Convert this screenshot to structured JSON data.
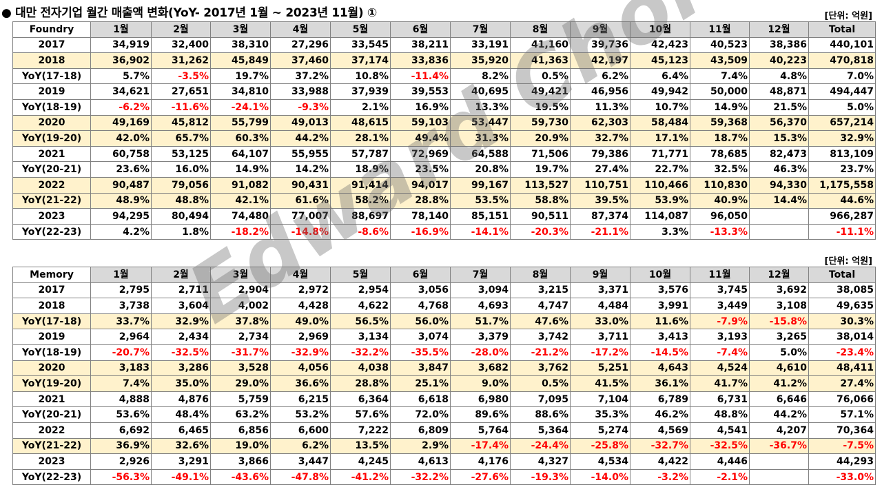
{
  "title": "● 대만 전자기업 월간 매출액 변화(YoY- 2017년 1월 ~  2023년 11월) ①",
  "unit_label": "[단위: 억원]",
  "watermark": "Edward Choi",
  "colors": {
    "header_bg": "#d9d9d9",
    "highlight_bg": "#fff2cc",
    "negative": "#ff0000",
    "border": "#808080"
  },
  "tables": [
    {
      "id": "foundry",
      "columns": [
        "Foundry",
        "1월",
        "2월",
        "3월",
        "4월",
        "5월",
        "6월",
        "7월",
        "8월",
        "9월",
        "10월",
        "11월",
        "12월",
        "Total"
      ],
      "rows": [
        {
          "label": "2017",
          "hl": false,
          "cells": [
            "34,919",
            "32,400",
            "38,310",
            "27,296",
            "33,545",
            "38,211",
            "33,191",
            "41,160",
            "39,736",
            "42,423",
            "40,523",
            "38,386",
            "440,101"
          ]
        },
        {
          "label": "2018",
          "hl": true,
          "cells": [
            "36,902",
            "31,262",
            "45,849",
            "37,460",
            "37,174",
            "33,836",
            "35,920",
            "41,363",
            "42,197",
            "45,123",
            "43,509",
            "40,223",
            "470,818"
          ]
        },
        {
          "label": "YoY(17-18)",
          "hl": false,
          "cells": [
            "5.7%",
            "-3.5%",
            "19.7%",
            "37.2%",
            "10.8%",
            "-11.4%",
            "8.2%",
            "0.5%",
            "6.2%",
            "6.4%",
            "7.4%",
            "4.8%",
            "7.0%"
          ]
        },
        {
          "label": "2019",
          "hl": false,
          "cells": [
            "34,621",
            "27,651",
            "34,810",
            "33,988",
            "37,939",
            "39,553",
            "40,695",
            "49,421",
            "46,956",
            "49,942",
            "50,000",
            "48,871",
            "494,447"
          ]
        },
        {
          "label": "YoY(18-19)",
          "hl": false,
          "cells": [
            "-6.2%",
            "-11.6%",
            "-24.1%",
            "-9.3%",
            "2.1%",
            "16.9%",
            "13.3%",
            "19.5%",
            "11.3%",
            "10.7%",
            "14.9%",
            "21.5%",
            "5.0%"
          ]
        },
        {
          "label": "2020",
          "hl": true,
          "cells": [
            "49,169",
            "45,812",
            "55,799",
            "49,013",
            "48,615",
            "59,103",
            "53,447",
            "59,730",
            "62,303",
            "58,484",
            "59,368",
            "56,370",
            "657,214"
          ]
        },
        {
          "label": "YoY(19-20)",
          "hl": true,
          "cells": [
            "42.0%",
            "65.7%",
            "60.3%",
            "44.2%",
            "28.1%",
            "49.4%",
            "31.3%",
            "20.9%",
            "32.7%",
            "17.1%",
            "18.7%",
            "15.3%",
            "32.9%"
          ]
        },
        {
          "label": "2021",
          "hl": false,
          "cells": [
            "60,758",
            "53,125",
            "64,107",
            "55,955",
            "57,787",
            "72,969",
            "64,588",
            "71,506",
            "79,386",
            "71,771",
            "78,685",
            "82,473",
            "813,109"
          ]
        },
        {
          "label": "YoY(20-21)",
          "hl": false,
          "cells": [
            "23.6%",
            "16.0%",
            "14.9%",
            "14.2%",
            "18.9%",
            "23.5%",
            "20.8%",
            "19.7%",
            "27.4%",
            "22.7%",
            "32.5%",
            "46.3%",
            "23.7%"
          ]
        },
        {
          "label": "2022",
          "hl": true,
          "cells": [
            "90,487",
            "79,056",
            "91,082",
            "90,431",
            "91,414",
            "94,017",
            "99,167",
            "113,527",
            "110,751",
            "110,466",
            "110,830",
            "94,330",
            "1,175,558"
          ]
        },
        {
          "label": "YoY(21-22)",
          "hl": true,
          "cells": [
            "48.9%",
            "48.8%",
            "42.1%",
            "61.6%",
            "58.2%",
            "28.8%",
            "53.5%",
            "58.8%",
            "39.5%",
            "53.9%",
            "40.9%",
            "14.4%",
            "44.6%"
          ]
        },
        {
          "label": "2023",
          "hl": false,
          "cells": [
            "94,295",
            "80,494",
            "74,480",
            "77,007",
            "88,697",
            "78,140",
            "85,151",
            "90,511",
            "87,374",
            "114,087",
            "96,050",
            "",
            "966,287"
          ]
        },
        {
          "label": "YoY(22-23)",
          "hl": false,
          "cells": [
            "4.2%",
            "1.8%",
            "-18.2%",
            "-14.8%",
            "-8.6%",
            "-16.9%",
            "-14.1%",
            "-20.3%",
            "-21.1%",
            "3.3%",
            "-13.3%",
            "",
            "-11.1%"
          ]
        }
      ]
    },
    {
      "id": "memory",
      "columns": [
        "Memory",
        "1월",
        "2월",
        "3월",
        "4월",
        "5월",
        "6월",
        "7월",
        "8월",
        "9월",
        "10월",
        "11월",
        "12월",
        "Total"
      ],
      "rows": [
        {
          "label": "2017",
          "hl": false,
          "cells": [
            "2,795",
            "2,711",
            "2,904",
            "2,972",
            "2,954",
            "3,056",
            "3,094",
            "3,215",
            "3,371",
            "3,576",
            "3,745",
            "3,692",
            "38,085"
          ]
        },
        {
          "label": "2018",
          "hl": false,
          "cells": [
            "3,738",
            "3,604",
            "4,002",
            "4,428",
            "4,622",
            "4,768",
            "4,693",
            "4,747",
            "4,484",
            "3,991",
            "3,449",
            "3,108",
            "49,635"
          ]
        },
        {
          "label": "YoY(17-18)",
          "hl": true,
          "cells": [
            "33.7%",
            "32.9%",
            "37.8%",
            "49.0%",
            "56.5%",
            "56.0%",
            "51.7%",
            "47.6%",
            "33.0%",
            "11.6%",
            "-7.9%",
            "-15.8%",
            "30.3%"
          ]
        },
        {
          "label": "2019",
          "hl": false,
          "cells": [
            "2,964",
            "2,434",
            "2,734",
            "2,969",
            "3,134",
            "3,074",
            "3,379",
            "3,742",
            "3,711",
            "3,413",
            "3,193",
            "3,265",
            "38,014"
          ]
        },
        {
          "label": "YoY(18-19)",
          "hl": false,
          "cells": [
            "-20.7%",
            "-32.5%",
            "-31.7%",
            "-32.9%",
            "-32.2%",
            "-35.5%",
            "-28.0%",
            "-21.2%",
            "-17.2%",
            "-14.5%",
            "-7.4%",
            "5.0%",
            "-23.4%"
          ]
        },
        {
          "label": "2020",
          "hl": true,
          "cells": [
            "3,183",
            "3,286",
            "3,528",
            "4,056",
            "4,038",
            "3,847",
            "3,682",
            "3,762",
            "5,251",
            "4,643",
            "4,524",
            "4,610",
            "48,411"
          ]
        },
        {
          "label": "YoY(19-20)",
          "hl": true,
          "cells": [
            "7.4%",
            "35.0%",
            "29.0%",
            "36.6%",
            "28.8%",
            "25.1%",
            "9.0%",
            "0.5%",
            "41.5%",
            "36.1%",
            "41.7%",
            "41.2%",
            "27.4%"
          ]
        },
        {
          "label": "2021",
          "hl": false,
          "cells": [
            "4,888",
            "4,876",
            "5,759",
            "6,215",
            "6,364",
            "6,618",
            "6,980",
            "7,095",
            "7,104",
            "6,789",
            "6,731",
            "6,646",
            "76,066"
          ]
        },
        {
          "label": "YoY(20-21)",
          "hl": false,
          "cells": [
            "53.6%",
            "48.4%",
            "63.2%",
            "53.2%",
            "57.6%",
            "72.0%",
            "89.6%",
            "88.6%",
            "35.3%",
            "46.2%",
            "48.8%",
            "44.2%",
            "57.1%"
          ]
        },
        {
          "label": "2022",
          "hl": false,
          "cells": [
            "6,692",
            "6,465",
            "6,856",
            "6,600",
            "7,222",
            "6,809",
            "5,764",
            "5,364",
            "5,274",
            "4,569",
            "4,541",
            "4,207",
            "70,364"
          ]
        },
        {
          "label": "YoY(21-22)",
          "hl": true,
          "cells": [
            "36.9%",
            "32.6%",
            "19.0%",
            "6.2%",
            "13.5%",
            "2.9%",
            "-17.4%",
            "-24.4%",
            "-25.8%",
            "-32.7%",
            "-32.5%",
            "-36.7%",
            "-7.5%"
          ]
        },
        {
          "label": "2023",
          "hl": false,
          "cells": [
            "2,926",
            "3,291",
            "3,866",
            "3,447",
            "4,245",
            "4,613",
            "4,176",
            "4,327",
            "4,534",
            "4,422",
            "4,446",
            "",
            "44,293"
          ]
        },
        {
          "label": "YoY(22-23)",
          "hl": false,
          "cells": [
            "-56.3%",
            "-49.1%",
            "-43.6%",
            "-47.8%",
            "-41.2%",
            "-32.2%",
            "-27.6%",
            "-19.3%",
            "-14.0%",
            "-3.2%",
            "-2.1%",
            "",
            "-33.0%"
          ]
        }
      ]
    }
  ]
}
